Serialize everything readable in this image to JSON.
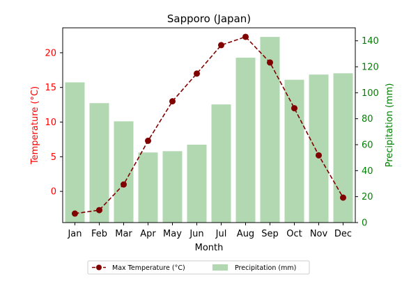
{
  "chart_data": {
    "type": "bar+line",
    "title": "Sapporo (Japan)",
    "xlabel": "Month",
    "categories": [
      "Jan",
      "Feb",
      "Mar",
      "Apr",
      "May",
      "Jun",
      "Jul",
      "Aug",
      "Sep",
      "Oct",
      "Nov",
      "Dec"
    ],
    "y_left": {
      "label": "Temperature (°C)",
      "color": "#ff0000",
      "range": [
        -4.5,
        23.6
      ],
      "ticks": [
        0,
        5,
        10,
        15,
        20
      ]
    },
    "y_right": {
      "label": "Precipitation (mm)",
      "color": "#008000",
      "range": [
        0,
        150
      ],
      "ticks": [
        0,
        20,
        40,
        60,
        80,
        100,
        120,
        140
      ]
    },
    "series": [
      {
        "name": "Max Temperature (°C)",
        "type": "line",
        "axis": "left",
        "color": "#800000",
        "line_style": "dashed",
        "marker": "circle",
        "values": [
          -3.2,
          -2.7,
          1.0,
          7.3,
          13.0,
          17.0,
          21.1,
          22.3,
          18.6,
          12.0,
          5.2,
          -0.9
        ]
      },
      {
        "name": "Precipitation (mm)",
        "type": "bar",
        "axis": "right",
        "color": "#b2d8b2",
        "values": [
          108,
          92,
          78,
          54,
          55,
          60,
          91,
          127,
          143,
          110,
          114,
          115
        ]
      }
    ],
    "legend": {
      "placement": "bottom-center"
    },
    "grid": false
  }
}
